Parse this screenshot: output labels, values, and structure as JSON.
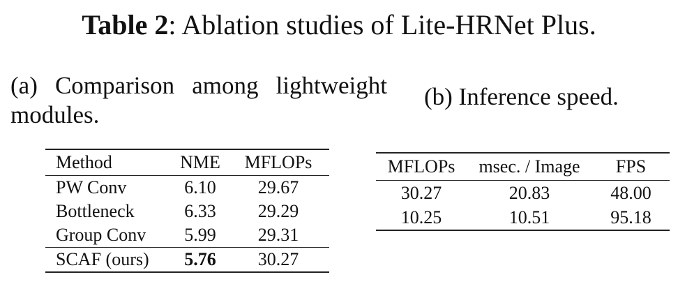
{
  "caption": {
    "label": "Table 2",
    "separator": ":",
    "text": " Ablation studies of Lite-HRNet Plus."
  },
  "table_a": {
    "caption": "(a) Comparison among lightweight modules.",
    "headers": [
      "Method",
      "NME",
      "MFLOPs"
    ],
    "rows": [
      [
        "PW Conv",
        "6.10",
        "29.67"
      ],
      [
        "Bottleneck",
        "6.33",
        "29.29"
      ],
      [
        "Group Conv",
        "5.99",
        "29.31"
      ],
      [
        "SCAF (ours)",
        "5.76",
        "30.27"
      ]
    ]
  },
  "table_b": {
    "caption": "(b) Inference speed.",
    "headers": [
      "MFLOPs",
      "msec. / Image",
      "FPS"
    ],
    "rows": [
      [
        "30.27",
        "20.83",
        "48.00"
      ],
      [
        "10.25",
        "10.51",
        "95.18"
      ]
    ]
  }
}
